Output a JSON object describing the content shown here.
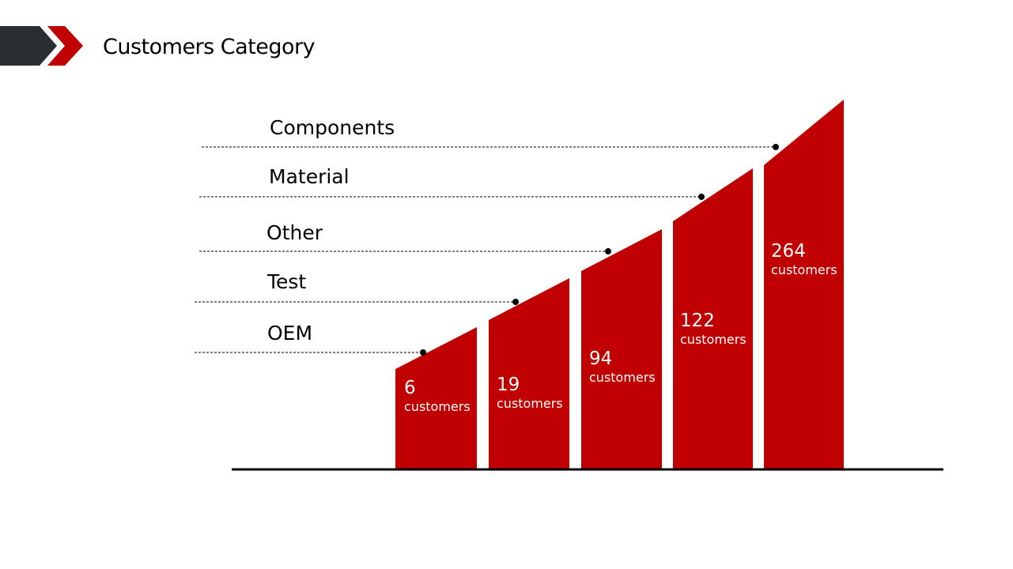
{
  "slide": {
    "title": "Customers Category"
  },
  "colors": {
    "bar": "#c00000",
    "header_dark": "#2b2e31",
    "header_red": "#c00000"
  },
  "chart_data": {
    "type": "bar",
    "title": "Customers Category",
    "categories": [
      "OEM",
      "Test",
      "Other",
      "Material",
      "Components"
    ],
    "values": [
      6,
      19,
      94,
      122,
      264
    ],
    "value_labels": [
      "6",
      "19",
      "94",
      "122",
      "264"
    ],
    "unit_label": "customers",
    "xlabel": "",
    "ylabel": "",
    "grid": false,
    "legend": "none"
  }
}
